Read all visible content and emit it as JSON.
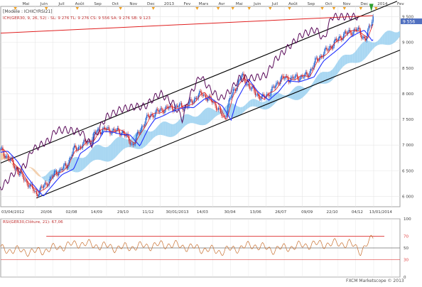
{
  "top_months": [
    "Mai",
    "Juin",
    "Juil",
    "Août",
    "Sep",
    "Oct",
    "Nov",
    "Dec",
    "2013",
    "Fev",
    "Mars",
    "Avr",
    "Mai",
    "Juin",
    "Juil",
    "Août",
    "Sep",
    "Oct",
    "Nov",
    "Dec",
    "2014",
    "Fev"
  ],
  "bottom_dates": [
    "03/04/2012",
    "20/06",
    "02/08",
    "14/09",
    "29/10",
    "11/12",
    "30/01/2013",
    "14/03",
    "30/04",
    "13/06",
    "26/07",
    "09/09",
    "22/10",
    "04/12",
    "13/01/2014"
  ],
  "legend": {
    "line1": "[Modèle : ICHICYRSI21]",
    "line2": "ICH(GER30, 9, 26, 52) - SL: 9 276 TL: 9 276 CS: 9 556 SA: 9 276 SB: 9 123"
  },
  "price_axis": [
    "9 500",
    "9 000",
    "8 500",
    "8 000",
    "7 500",
    "7 000",
    "6 500",
    "6 000"
  ],
  "last_price_label": "9 556",
  "rsi": {
    "label": "RSI(GER30,Clôture, 21): 67,06",
    "levels": [
      "100",
      "70",
      "50",
      "30",
      "0"
    ]
  },
  "watermark": "FXCM Marketscope © 2013",
  "colors": {
    "kijun": "#2030ff",
    "tenkan": "#e02020",
    "chikou": "#5a0a5a",
    "cloud_bull": "#9ad0f0",
    "cloud_bear": "#f0c8a0",
    "candle_up": "#2060d0",
    "candle_down": "#d03030",
    "channel": "#000000",
    "resistance": "#e02020",
    "rsi_line": "#c87030"
  },
  "chart_data": {
    "type": "line",
    "title": "",
    "subtitle": "ICH(GER30, 9, 26, 52) - SL: 9 276 TL: 9 276 CS: 9 556 SA: 9 276 SB: 9 123",
    "ylim": [
      5800,
      9700
    ],
    "x_range": [
      "2012-04-03",
      "2014-02-15"
    ],
    "grid": true,
    "series": [
      {
        "name": "Clôture",
        "values": [
          [
            "2012-04-03",
            6900
          ],
          [
            "2012-04-20",
            6700
          ],
          [
            "2012-05-05",
            6450
          ],
          [
            "2012-05-20",
            6250
          ],
          [
            "2012-06-03",
            6050
          ],
          [
            "2012-06-20",
            6250
          ],
          [
            "2012-07-05",
            6450
          ],
          [
            "2012-07-25",
            6600
          ],
          [
            "2012-08-05",
            6900
          ],
          [
            "2012-08-20",
            7000
          ],
          [
            "2012-09-05",
            7100
          ],
          [
            "2012-09-14",
            7280
          ],
          [
            "2012-10-01",
            7300
          ],
          [
            "2012-10-29",
            7250
          ],
          [
            "2012-11-15",
            7000
          ],
          [
            "2012-11-30",
            7350
          ],
          [
            "2012-12-11",
            7550
          ],
          [
            "2013-01-05",
            7700
          ],
          [
            "2013-01-30",
            7750
          ],
          [
            "2013-02-15",
            7750
          ],
          [
            "2013-03-05",
            7950
          ],
          [
            "2013-03-14",
            8000
          ],
          [
            "2013-04-05",
            7800
          ],
          [
            "2013-04-20",
            7500
          ],
          [
            "2013-04-30",
            7900
          ],
          [
            "2013-05-20",
            8350
          ],
          [
            "2013-06-05",
            8100
          ],
          [
            "2013-06-24",
            7900
          ],
          [
            "2013-07-10",
            8050
          ],
          [
            "2013-07-26",
            8300
          ],
          [
            "2013-08-15",
            8300
          ],
          [
            "2013-09-09",
            8350
          ],
          [
            "2013-09-25",
            8650
          ],
          [
            "2013-10-22",
            8950
          ],
          [
            "2013-11-10",
            9150
          ],
          [
            "2013-12-04",
            9250
          ],
          [
            "2013-12-18",
            9050
          ],
          [
            "2013-12-31",
            9500
          ]
        ]
      },
      {
        "name": "SA",
        "values": [
          [
            "2012-04-03",
            6700
          ],
          [
            "2012-06-20",
            6400
          ],
          [
            "2012-09-14",
            6950
          ],
          [
            "2012-12-11",
            7300
          ],
          [
            "2013-03-14",
            7650
          ],
          [
            "2013-06-13",
            7850
          ],
          [
            "2013-09-09",
            8150
          ],
          [
            "2013-12-04",
            8900
          ],
          [
            "2014-02-15",
            9276
          ]
        ]
      },
      {
        "name": "SB",
        "values": [
          [
            "2012-04-03",
            6800
          ],
          [
            "2012-06-20",
            6350
          ],
          [
            "2012-09-14",
            6650
          ],
          [
            "2012-12-11",
            7050
          ],
          [
            "2013-03-14",
            7450
          ],
          [
            "2013-06-13",
            7700
          ],
          [
            "2013-09-09",
            8000
          ],
          [
            "2013-12-04",
            8650
          ],
          [
            "2014-02-15",
            9123
          ]
        ]
      },
      {
        "name": "RSI",
        "values": [
          [
            "2012-04-03",
            48
          ],
          [
            "2012-06-01",
            43
          ],
          [
            "2012-08-15",
            58
          ],
          [
            "2012-10-20",
            50
          ],
          [
            "2013-01-15",
            56
          ],
          [
            "2013-04-15",
            44
          ],
          [
            "2013-06-10",
            55
          ],
          [
            "2013-07-10",
            47
          ],
          [
            "2013-09-15",
            56
          ],
          [
            "2013-11-20",
            58
          ],
          [
            "2013-12-10",
            45
          ],
          [
            "2013-12-31",
            67.06
          ]
        ]
      }
    ]
  }
}
